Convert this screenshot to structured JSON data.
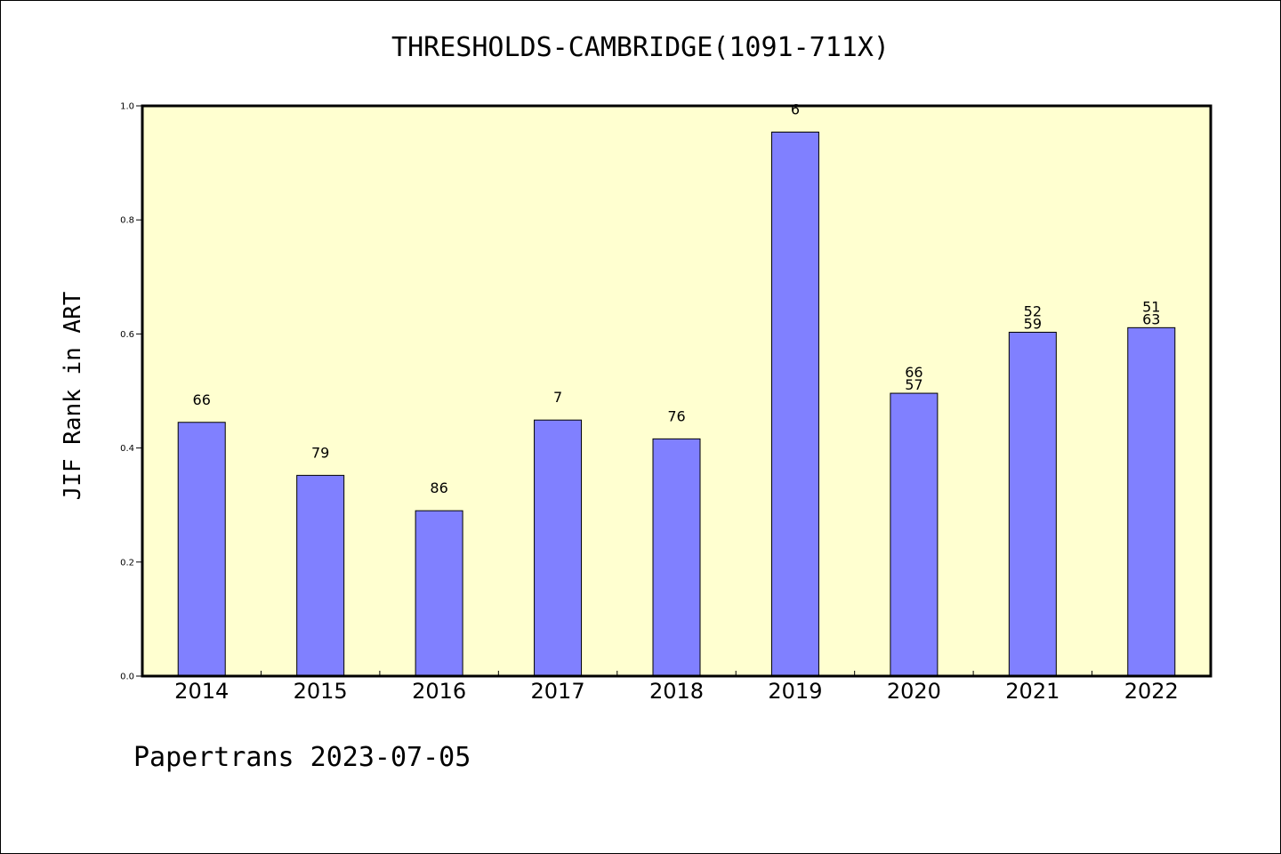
{
  "chart_data": {
    "type": "bar",
    "title": "THRESHOLDS-CAMBRIDGE(1091-711X)",
    "xlabel": "",
    "ylabel": "JIF Rank in ART",
    "ylim": [
      0,
      1.0
    ],
    "yticks": [
      "0.0",
      "0.2",
      "0.4",
      "0.6",
      "0.8",
      "1.0"
    ],
    "grid": false,
    "colors": {
      "bar": "#8080ff",
      "plot_background": "#ffffd0",
      "axis": "#000000"
    },
    "categories": [
      "2014",
      "2015",
      "2016",
      "2017",
      "2018",
      "2019",
      "2020",
      "2021",
      "2022"
    ],
    "values": [
      0.445,
      0.352,
      0.29,
      0.449,
      0.416,
      0.954,
      0.496,
      0.603,
      0.611
    ],
    "bar_labels": [
      [
        "66"
      ],
      [
        "79"
      ],
      [
        "86"
      ],
      [
        "7"
      ],
      [
        "76"
      ],
      [
        "6"
      ],
      [
        "66",
        "57"
      ],
      [
        "52",
        "59"
      ],
      [
        "51",
        "63"
      ]
    ]
  },
  "footer": "Papertrans 2023-07-05"
}
